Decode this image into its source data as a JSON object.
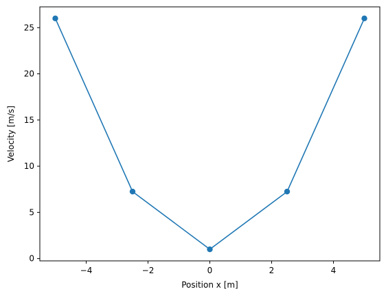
{
  "chart_data": {
    "type": "line",
    "title": "",
    "xlabel": "Position x [m]",
    "ylabel": "Velocity [m/s]",
    "xlim": [
      -5.5,
      5.5
    ],
    "ylim": [
      -0.25,
      27.25
    ],
    "xticks": [
      -4,
      -2,
      0,
      2,
      4
    ],
    "xtick_labels": [
      "−4",
      "−2",
      "0",
      "2",
      "4"
    ],
    "yticks": [
      0,
      5,
      10,
      15,
      20,
      25
    ],
    "ytick_labels": [
      "0",
      "5",
      "10",
      "15",
      "20",
      "25"
    ],
    "grid": false,
    "legend": "none",
    "series": [
      {
        "x": [
          -5,
          -2.5,
          0,
          2.5,
          5
        ],
        "y": [
          26,
          7.25,
          1,
          7.25,
          26
        ],
        "color": "#1f77b4",
        "marker": "circle"
      }
    ]
  }
}
